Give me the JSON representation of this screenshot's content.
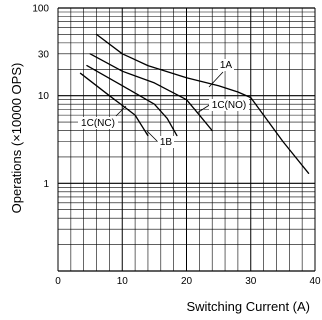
{
  "chart_data": {
    "type": "line",
    "xlabel": "Switching Current (A)",
    "ylabel": "Operations (×10000 OPS)",
    "xlim": [
      0,
      40
    ],
    "ylim": [
      0.1,
      100
    ],
    "y_scale": "log",
    "grid": true,
    "x_ticks": [
      0,
      10,
      20,
      30,
      40
    ],
    "x_tick_labels": [
      "0",
      "10",
      "20",
      "30",
      "40"
    ],
    "y_ticks": [
      1,
      10,
      30,
      100
    ],
    "y_tick_labels": [
      "1",
      "10",
      "30",
      "100"
    ],
    "series": [
      {
        "name": "1A",
        "x": [
          6,
          10,
          14,
          20,
          25,
          28,
          30,
          32,
          35,
          39
        ],
        "y": [
          50,
          30,
          22,
          16,
          13,
          11,
          9.5,
          6,
          3,
          1.3
        ]
      },
      {
        "name": "1C(NO)",
        "x": [
          5,
          10,
          15,
          20,
          22,
          24
        ],
        "y": [
          30,
          19,
          14,
          9,
          6,
          4
        ]
      },
      {
        "name": "1B",
        "x": [
          4.5,
          10,
          15,
          17,
          18.5
        ],
        "y": [
          22,
          13,
          8,
          5.5,
          3.5
        ]
      },
      {
        "name": "1C(NC)",
        "x": [
          3.5,
          8,
          12,
          14
        ],
        "y": [
          18,
          10,
          6,
          3.5
        ]
      }
    ]
  }
}
